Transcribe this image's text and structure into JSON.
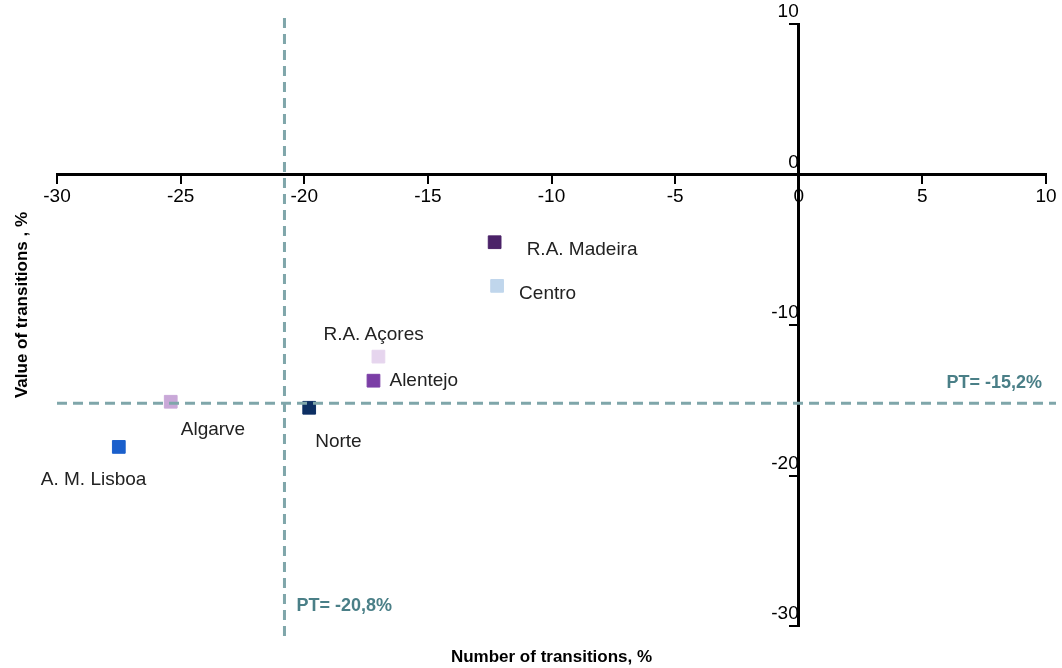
{
  "chart_data": {
    "type": "scatter",
    "xlabel": "Number of transitions, %",
    "ylabel": "Value of transitions , %",
    "xlim": [
      -30,
      10
    ],
    "xticks": [
      -30,
      -25,
      -20,
      -15,
      -10,
      -5,
      0,
      5,
      10
    ],
    "ylim": [
      -30,
      10
    ],
    "yticks": [
      -30,
      -20,
      -10,
      0,
      10
    ],
    "grid": false,
    "legend": false,
    "marker": "square",
    "series": [
      {
        "name": "R.A. Madeira",
        "color": "#4b2268",
        "x": [
          -12.3
        ],
        "values": [
          -4.5
        ]
      },
      {
        "name": "Centro",
        "color": "#c0d6ec",
        "x": [
          -12.2
        ],
        "values": [
          -7.4
        ]
      },
      {
        "name": "R.A. Açores",
        "color": "#e6d5ee",
        "x": [
          -17.0
        ],
        "values": [
          -12.1
        ]
      },
      {
        "name": "Alentejo",
        "color": "#7b3ea6",
        "x": [
          -17.2
        ],
        "values": [
          -13.7
        ]
      },
      {
        "name": "Algarve",
        "color": "#c9a8d8",
        "x": [
          -25.4
        ],
        "values": [
          -15.1
        ]
      },
      {
        "name": "Norte",
        "color": "#0d2f63",
        "x": [
          -19.8
        ],
        "values": [
          -15.5
        ]
      },
      {
        "name": "A. M. Lisboa",
        "color": "#1a5fcc",
        "x": [
          -27.5
        ],
        "values": [
          -18.1
        ]
      }
    ],
    "ref_lines": [
      {
        "axis": "x",
        "value": -20.8,
        "label": "PT= -20,8%",
        "color": "#7fa6aa",
        "line_style": "dashed"
      },
      {
        "axis": "y",
        "value": -15.2,
        "label": "PT= -15,2%",
        "color": "#7fa6aa",
        "line_style": "dashed"
      }
    ]
  }
}
